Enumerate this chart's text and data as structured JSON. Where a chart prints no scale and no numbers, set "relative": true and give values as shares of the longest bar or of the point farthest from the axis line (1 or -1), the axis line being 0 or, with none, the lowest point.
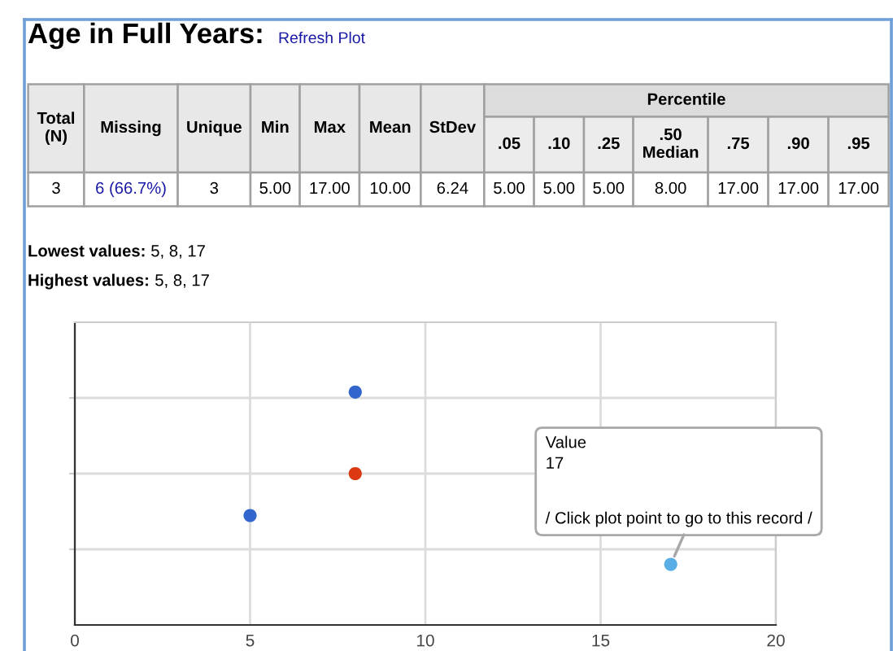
{
  "chart_data": {
    "type": "scatter",
    "title": "Age in Full Years:",
    "relative": true,
    "series": [
      {
        "colors": [
          "#3366cc",
          "#3366cc",
          "#5aaee6"
        ],
        "x": [
          5,
          8,
          17
        ],
        "values": [
          0.47,
          1,
          0.26
        ]
      },
      {
        "color": "#dc3912",
        "x": [
          8
        ],
        "values": [
          0.65
        ]
      }
    ],
    "xlim": [
      0,
      20
    ],
    "xticks": [
      0,
      5,
      10,
      15,
      20
    ],
    "grid": true,
    "tick_labels": "x",
    "marker": "circle",
    "annotations": [
      "Refresh Plot",
      "Total\n(N)",
      "Missing",
      "Unique",
      "Min",
      "Max",
      "Mean",
      "StDev",
      "Percentile",
      ".05",
      ".10",
      ".25",
      ".50\nMedian",
      ".75",
      ".90",
      ".95",
      "3",
      "6 (66.7%)",
      "3",
      "5.00",
      "17.00",
      "10.00",
      "6.24",
      "5.00",
      "5.00",
      "5.00",
      "8.00",
      "17.00",
      "17.00",
      "17.00",
      "Lowest values: 5, 8, 17",
      "Highest values: 5, 8, 17",
      "Value\n17",
      {
        "text": "/ Click plot point to go to this record /",
        "x": 17,
        "y": 0.26
      }
    ]
  }
}
